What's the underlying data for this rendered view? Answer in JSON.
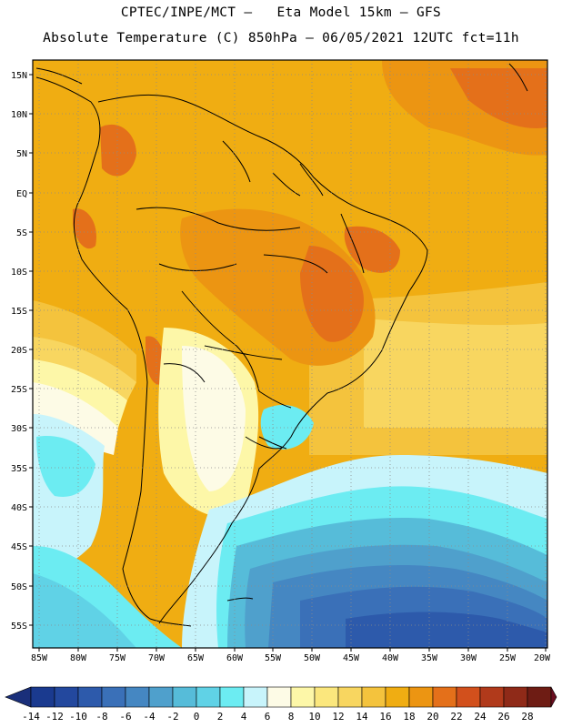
{
  "header": {
    "line1": "CPTEC/INPE/MCT –   Eta Model 15km – GFS",
    "line2": "Absolute Temperature (C) 850hPa – 06/05/2021 12UTC fct=11h"
  },
  "axes": {
    "lat_labels": [
      "15N",
      "10N",
      "5N",
      "EQ",
      "5S",
      "10S",
      "15S",
      "20S",
      "25S",
      "30S",
      "35S",
      "40S",
      "45S",
      "50S",
      "55S"
    ],
    "lon_labels": [
      "85W",
      "80W",
      "75W",
      "70W",
      "65W",
      "60W",
      "55W",
      "50W",
      "45W",
      "40W",
      "35W",
      "30W",
      "25W",
      "20W"
    ]
  },
  "colorbar": {
    "labels": [
      "-14",
      "-12",
      "-10",
      "-8",
      "-6",
      "-4",
      "-2",
      "0",
      "2",
      "4",
      "6",
      "8",
      "10",
      "12",
      "14",
      "16",
      "18",
      "20",
      "22",
      "24",
      "26",
      "28"
    ],
    "colors": [
      "#1a3a8f",
      "#23489e",
      "#2d5aab",
      "#3a70b8",
      "#4587c2",
      "#4fa0cc",
      "#56bcd9",
      "#60d2e6",
      "#6cecf2",
      "#c8f4fb",
      "#fdfbe6",
      "#fdf7a8",
      "#fbe77d",
      "#f8d660",
      "#f4c33d",
      "#f0ad12",
      "#ec9512",
      "#e4701a",
      "#d2501c",
      "#b13a1b",
      "#8f2a18",
      "#6e1c14"
    ],
    "low_arrow_color": "#1a2f7a",
    "high_arrow_color": "#6a0d1f"
  }
}
